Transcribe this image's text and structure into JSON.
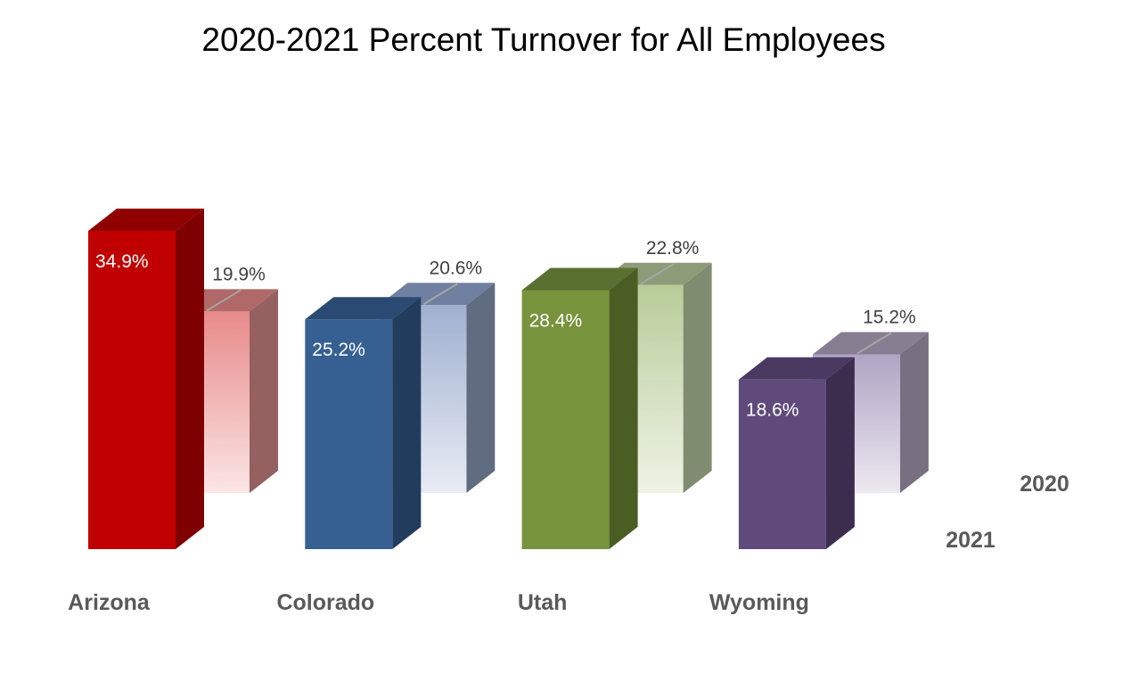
{
  "chart_data": {
    "type": "bar",
    "title": "2020-2021 Percent Turnover for All Employees",
    "categories": [
      "Arizona",
      "Colorado",
      "Utah",
      "Wyoming"
    ],
    "series": [
      {
        "name": "2021",
        "values": [
          34.9,
          25.2,
          28.4,
          18.6
        ],
        "labels": [
          "34.9%",
          "25.2%",
          "28.4%",
          "18.6%"
        ]
      },
      {
        "name": "2020",
        "values": [
          19.9,
          20.6,
          22.8,
          15.2
        ],
        "labels": [
          "19.9%",
          "20.6%",
          "22.8%",
          "15.2%"
        ]
      }
    ],
    "colors": {
      "front": [
        "#C00000",
        "#366092",
        "#77933C",
        "#604A7B"
      ],
      "front_side": [
        "#7F0000",
        "#223C5E",
        "#4A5E24",
        "#3C2D4F"
      ],
      "front_top": [
        "#900000",
        "#2B4A73",
        "#5A7030",
        "#4A3A62"
      ],
      "back_top_grad": [
        "#E88A8A",
        "#A0B0D0",
        "#B8CC98",
        "#B0A4C4"
      ],
      "back_bottom_grad": [
        "#FBE5E5",
        "#E8ECF5",
        "#EEF3E6",
        "#ECE8F0"
      ],
      "back_side": [
        "#946060",
        "#606C80",
        "#808C70",
        "#787080"
      ],
      "back_top": [
        "#B06868",
        "#7080A0",
        "#8C9C78",
        "#887E92"
      ]
    },
    "ylim": [
      0,
      40
    ],
    "grid": false,
    "legend": "none",
    "xlabel": "",
    "ylabel": ""
  }
}
